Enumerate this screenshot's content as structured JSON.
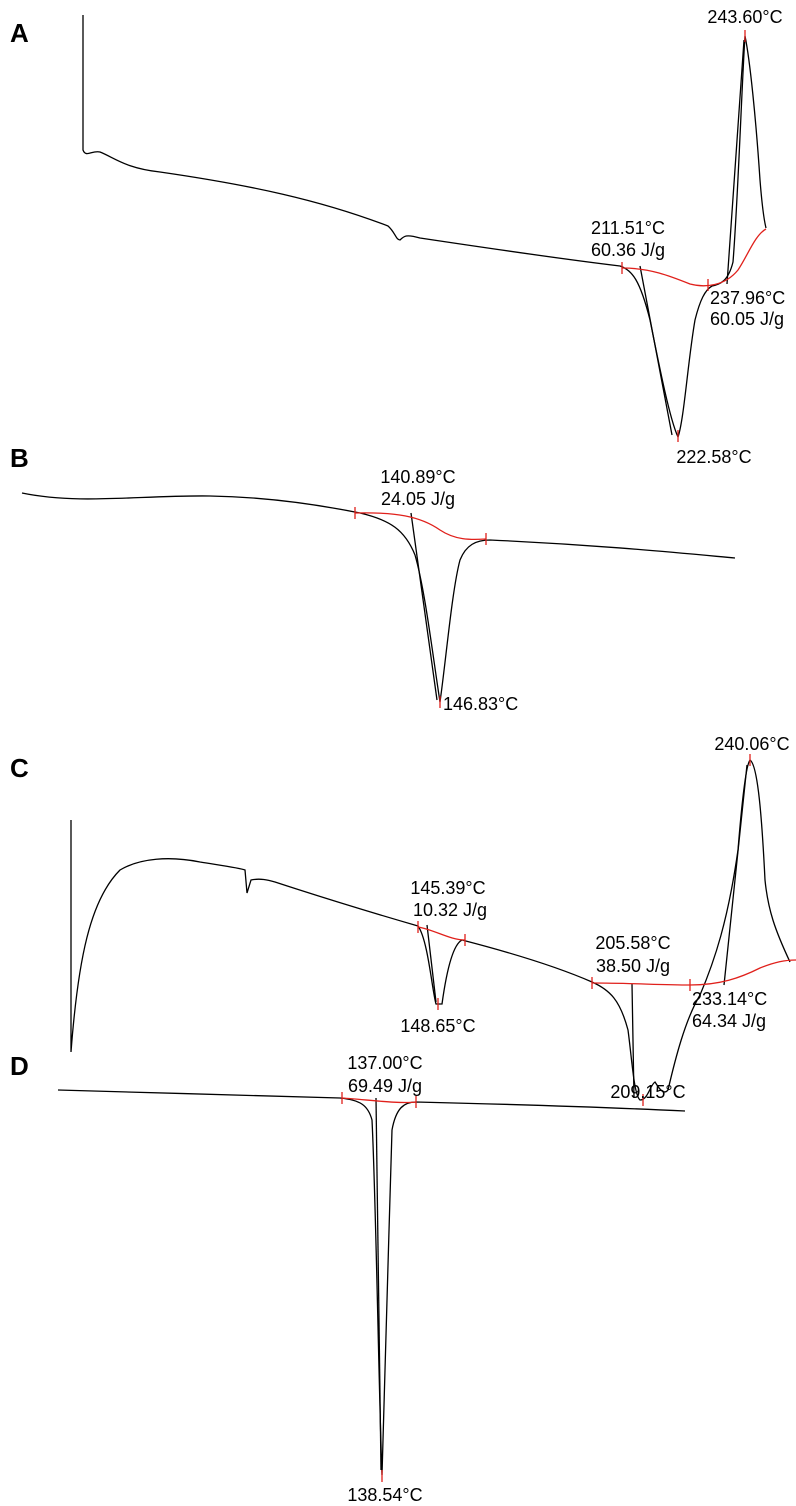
{
  "panels": [
    {
      "label": "A",
      "annotations": [
        "243.60°C",
        "211.51°C",
        "60.36 J/g",
        "237.96°C",
        "60.05 J/g",
        "222.58°C"
      ]
    },
    {
      "label": "B",
      "annotations": [
        "140.89°C",
        "24.05 J/g",
        "146.83°C"
      ]
    },
    {
      "label": "C",
      "annotations": [
        "240.06°C",
        "145.39°C",
        "10.32 J/g",
        "148.65°C",
        "205.58°C",
        "38.50 J/g",
        "233.14°C",
        "64.34 J/g",
        "209.15°C"
      ]
    },
    {
      "label": "D",
      "annotations": [
        "137.00°C",
        "69.49 J/g",
        "138.54°C"
      ]
    }
  ]
}
